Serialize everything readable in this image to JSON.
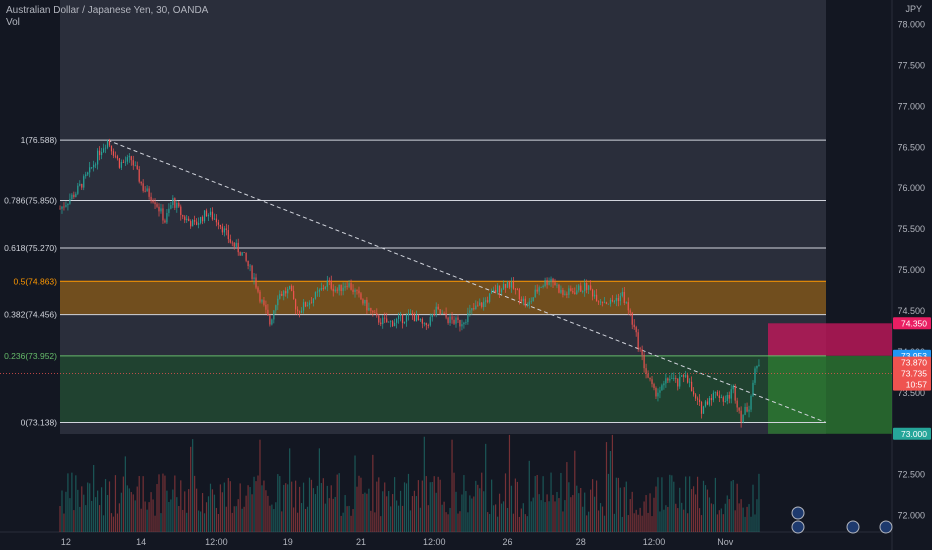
{
  "header": {
    "title": "Australian Dollar / Japanese Yen, 30, OANDA",
    "volume_label": "Vol",
    "currency": "JPY"
  },
  "chart_data": {
    "type": "candlestick",
    "symbol": "AUDJPY",
    "interval": "30",
    "source": "OANDA",
    "y_axis_ticks": [
      "78.000",
      "77.500",
      "77.000",
      "76.500",
      "76.000",
      "75.500",
      "75.000",
      "74.500",
      "74.000",
      "73.500",
      "73.000",
      "72.500",
      "72.000"
    ],
    "x_axis_ticks": [
      "12",
      "14",
      "12:00",
      "19",
      "21",
      "12:00",
      "26",
      "28",
      "12:00",
      "Nov"
    ],
    "fib_levels": [
      {
        "label": "1(76.588)",
        "value": 76.588
      },
      {
        "label": "0.786(75.850)",
        "value": 75.85
      },
      {
        "label": "0.618(75.270)",
        "value": 75.27
      },
      {
        "label": "0.5(74.863)",
        "value": 74.863
      },
      {
        "label": "0.382(74.456)",
        "value": 74.456
      },
      {
        "label": "0.236(73.952)",
        "value": 73.952
      },
      {
        "label": "0(73.138)",
        "value": 73.138
      }
    ],
    "price_labels": [
      {
        "text": "74.350",
        "value": 74.35,
        "color": "#e91e63"
      },
      {
        "text": "73.953",
        "value": 73.953,
        "color": "#2196f3"
      },
      {
        "text": "73.870",
        "value": 73.87,
        "color": "#ef5350"
      },
      {
        "text": "73.735",
        "value": 73.735,
        "color": "#ef5350"
      },
      {
        "text": "10:57",
        "value": 73.6,
        "color": "#ef5350"
      },
      {
        "text": "73.000",
        "value": 73.0,
        "color": "#26a69a"
      }
    ],
    "zones": [
      {
        "name": "orange band",
        "from": 74.456,
        "to": 74.863,
        "color": "#8a5a16"
      },
      {
        "name": "green band",
        "from": 73.138,
        "to": 73.952,
        "color": "#1e4a2e"
      }
    ],
    "position": {
      "entry": 73.953,
      "stop": 74.35,
      "target": 73.0
    },
    "price_path": [
      [
        0,
        75.75
      ],
      [
        0.8,
        75.95
      ],
      [
        1.5,
        76.2
      ],
      [
        2,
        76.45
      ],
      [
        2.4,
        76.588
      ],
      [
        3,
        76.3
      ],
      [
        3.6,
        76.35
      ],
      [
        4.2,
        76.0
      ],
      [
        4.8,
        75.85
      ],
      [
        5.3,
        75.6
      ],
      [
        5.7,
        75.85
      ],
      [
        6.2,
        75.65
      ],
      [
        6.8,
        75.55
      ],
      [
        7.4,
        75.7
      ],
      [
        8,
        75.6
      ],
      [
        8.6,
        75.35
      ],
      [
        9.2,
        75.2
      ],
      [
        9.8,
        74.9
      ],
      [
        10.2,
        74.6
      ],
      [
        10.6,
        74.35
      ],
      [
        11,
        74.7
      ],
      [
        11.6,
        74.75
      ],
      [
        12,
        74.5
      ],
      [
        12.5,
        74.6
      ],
      [
        13,
        74.7
      ],
      [
        13.5,
        74.85
      ],
      [
        14,
        74.75
      ],
      [
        14.5,
        74.85
      ],
      [
        15,
        74.7
      ],
      [
        15.5,
        74.55
      ],
      [
        16,
        74.4
      ],
      [
        16.6,
        74.35
      ],
      [
        17.2,
        74.4
      ],
      [
        17.8,
        74.45
      ],
      [
        18.4,
        74.3
      ],
      [
        19,
        74.5
      ],
      [
        19.6,
        74.4
      ],
      [
        20.2,
        74.35
      ],
      [
        20.8,
        74.5
      ],
      [
        21.4,
        74.6
      ],
      [
        22,
        74.75
      ],
      [
        22.6,
        74.85
      ],
      [
        23.2,
        74.7
      ],
      [
        23.6,
        74.55
      ],
      [
        24.2,
        74.8
      ],
      [
        24.8,
        74.9
      ],
      [
        25.4,
        74.7
      ],
      [
        26,
        74.75
      ],
      [
        26.6,
        74.8
      ],
      [
        27.2,
        74.65
      ],
      [
        27.8,
        74.6
      ],
      [
        28.4,
        74.7
      ],
      [
        28.8,
        74.45
      ],
      [
        29.2,
        74.1
      ],
      [
        29.6,
        73.75
      ],
      [
        30.0,
        73.5
      ],
      [
        30.4,
        73.55
      ],
      [
        30.8,
        73.7
      ],
      [
        31.2,
        73.6
      ],
      [
        31.6,
        73.75
      ],
      [
        32.0,
        73.45
      ],
      [
        32.4,
        73.3
      ],
      [
        32.8,
        73.45
      ],
      [
        33.2,
        73.5
      ],
      [
        33.6,
        73.4
      ],
      [
        34.0,
        73.55
      ],
      [
        34.4,
        73.2
      ],
      [
        34.8,
        73.35
      ],
      [
        35.1,
        73.75
      ],
      [
        35.4,
        73.93
      ]
    ],
    "x_range": [
      0,
      40
    ],
    "ylim": [
      71.8,
      78.3
    ]
  }
}
